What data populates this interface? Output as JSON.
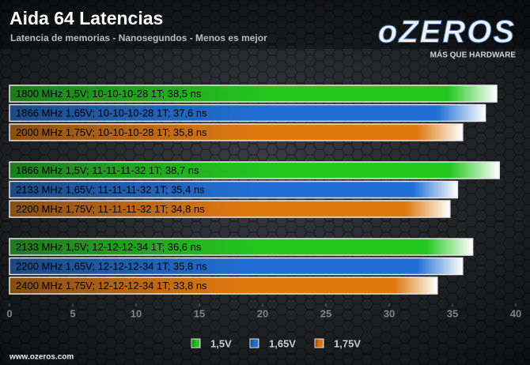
{
  "chart_data": {
    "type": "hbar-grouped",
    "title": "Aida 64 Latencias",
    "subtitle": "Latencia de memorias - Nanosegundos - Menos es mejor",
    "series": [
      {
        "name": "1,5V",
        "color": "#22c81e",
        "labels": [
          "1800 MHz 1,5V; 10-10-10-28 1T; 38,5 ns",
          "1866 MHz 1,5V; 11-11-11-32 1T; 38,7 ns",
          "2133 MHz 1,5V; 12-12-12-34 1T; 36,6 ns"
        ],
        "values": [
          38.5,
          38.7,
          36.6
        ]
      },
      {
        "name": "1,65V",
        "color": "#1f6fd6",
        "labels": [
          "1866 MHz 1,65V; 10-10-10-28 1T; 37,6 ns",
          "2133 MHz 1,65V; 11-11-11-32 1T; 35,4 ns",
          "2200 MHz 1,65V; 12-12-12-34 1T; 35,8 ns"
        ],
        "values": [
          37.6,
          35.4,
          35.8
        ]
      },
      {
        "name": "1,75V",
        "color": "#e0780e",
        "labels": [
          "2000 MHz 1,75V; 10-10-10-28 1T; 35,8 ns",
          "2200 MHz 1,75V; 11-11-11-32 1T; 34,8 ns",
          "2400 MHz 1,75V; 12-12-12-34 1T; 33,8 ns"
        ],
        "values": [
          35.8,
          34.8,
          33.8
        ]
      }
    ],
    "xlim": [
      0,
      40
    ],
    "xticks": [
      0,
      5,
      10,
      15,
      20,
      25,
      30,
      35,
      40
    ]
  },
  "logo": {
    "name": "oZEROS",
    "tagline": "MÁS QUE HARDWARE",
    "url": "www.ozeros.com"
  }
}
